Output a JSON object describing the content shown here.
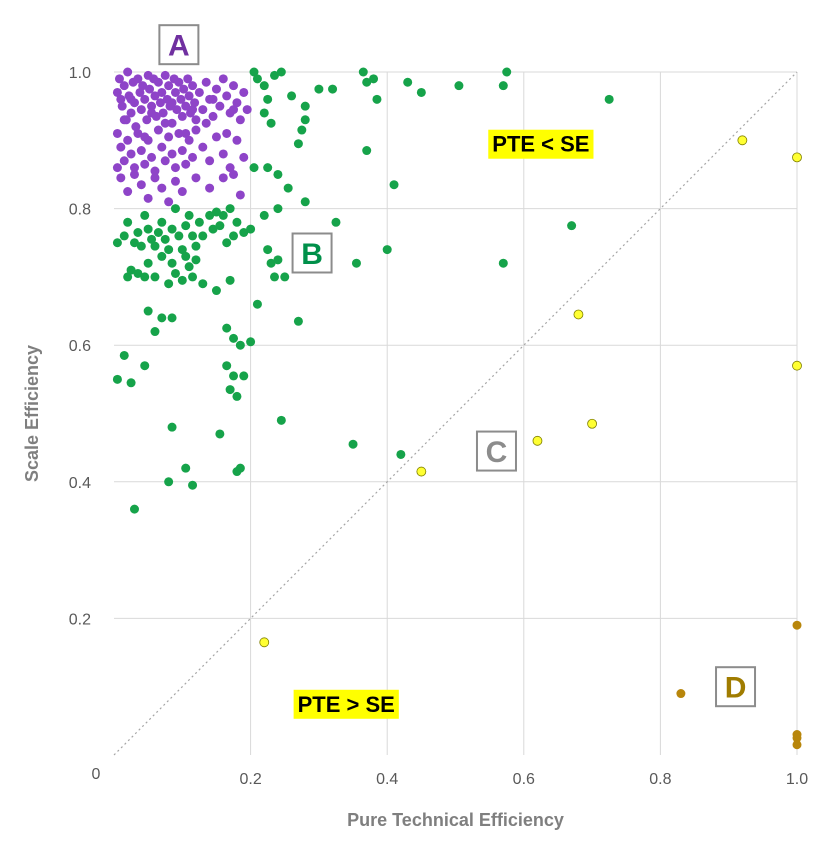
{
  "chart_data": {
    "type": "scatter",
    "title": "",
    "xlabel": "Pure Technical Efficiency",
    "ylabel": "Scale Efficiency",
    "xlim": [
      0,
      1
    ],
    "ylim": [
      0,
      1
    ],
    "grid": true,
    "x_ticks": [
      "0.2",
      "0.4",
      "0.6",
      "0.8",
      "1.0"
    ],
    "y_ticks": [
      "0.2",
      "0.4",
      "0.6",
      "0.8",
      "1.0"
    ],
    "origin_label": "0",
    "reference_line": {
      "type": "diagonal",
      "from": [
        0,
        0
      ],
      "to": [
        1,
        1
      ],
      "style": "dotted"
    },
    "colors": {
      "A": "#8e44c8",
      "B": "#16a34a",
      "C": "#ffff33",
      "D": "#b8860b",
      "grid": "#d9d9d9",
      "diagonal": "#a6a6a6",
      "highlight": "#ffff00"
    },
    "region_labels": [
      {
        "id": "A",
        "text": "A",
        "color": "#7030a0",
        "x": 0.095,
        "y": 1.04
      },
      {
        "id": "B",
        "text": "B",
        "color": "#00904a",
        "x": 0.29,
        "y": 0.735
      },
      {
        "id": "C",
        "text": "C",
        "color": "#8c8c8c",
        "x": 0.56,
        "y": 0.445
      },
      {
        "id": "D",
        "text": "D",
        "color": "#a07c00",
        "x": 0.91,
        "y": 0.1
      }
    ],
    "annotations": [
      {
        "text": "PTE < SE",
        "x": 0.625,
        "y": 0.895
      },
      {
        "text": "PTE > SE",
        "x": 0.34,
        "y": 0.075
      }
    ],
    "series": [
      {
        "group": "A",
        "points": [
          [
            0.005,
            0.97
          ],
          [
            0.008,
            0.99
          ],
          [
            0.01,
            0.96
          ],
          [
            0.012,
            0.95
          ],
          [
            0.015,
            0.98
          ],
          [
            0.018,
            0.93
          ],
          [
            0.02,
            1.0
          ],
          [
            0.022,
            0.965
          ],
          [
            0.025,
            0.94
          ],
          [
            0.028,
            0.985
          ],
          [
            0.03,
            0.955
          ],
          [
            0.032,
            0.92
          ],
          [
            0.035,
            0.99
          ],
          [
            0.038,
            0.97
          ],
          [
            0.04,
            0.945
          ],
          [
            0.042,
            0.98
          ],
          [
            0.045,
            0.96
          ],
          [
            0.048,
            0.93
          ],
          [
            0.05,
            0.995
          ],
          [
            0.052,
            0.975
          ],
          [
            0.055,
            0.95
          ],
          [
            0.058,
            0.99
          ],
          [
            0.06,
            0.965
          ],
          [
            0.062,
            0.935
          ],
          [
            0.065,
            0.985
          ],
          [
            0.068,
            0.955
          ],
          [
            0.07,
            0.97
          ],
          [
            0.072,
            0.94
          ],
          [
            0.075,
            0.995
          ],
          [
            0.078,
            0.96
          ],
          [
            0.08,
            0.98
          ],
          [
            0.082,
            0.95
          ],
          [
            0.085,
            0.925
          ],
          [
            0.088,
            0.99
          ],
          [
            0.09,
            0.97
          ],
          [
            0.092,
            0.945
          ],
          [
            0.095,
            0.985
          ],
          [
            0.098,
            0.96
          ],
          [
            0.1,
            0.935
          ],
          [
            0.102,
            0.975
          ],
          [
            0.105,
            0.95
          ],
          [
            0.108,
            0.99
          ],
          [
            0.11,
            0.965
          ],
          [
            0.112,
            0.94
          ],
          [
            0.115,
            0.98
          ],
          [
            0.118,
            0.955
          ],
          [
            0.12,
            0.93
          ],
          [
            0.125,
            0.97
          ],
          [
            0.13,
            0.945
          ],
          [
            0.135,
            0.985
          ],
          [
            0.14,
            0.96
          ],
          [
            0.145,
            0.935
          ],
          [
            0.15,
            0.975
          ],
          [
            0.155,
            0.95
          ],
          [
            0.16,
            0.99
          ],
          [
            0.165,
            0.965
          ],
          [
            0.17,
            0.94
          ],
          [
            0.175,
            0.98
          ],
          [
            0.18,
            0.955
          ],
          [
            0.185,
            0.93
          ],
          [
            0.19,
            0.97
          ],
          [
            0.195,
            0.945
          ],
          [
            0.005,
            0.91
          ],
          [
            0.01,
            0.89
          ],
          [
            0.015,
            0.87
          ],
          [
            0.02,
            0.9
          ],
          [
            0.025,
            0.88
          ],
          [
            0.03,
            0.86
          ],
          [
            0.035,
            0.91
          ],
          [
            0.04,
            0.885
          ],
          [
            0.045,
            0.865
          ],
          [
            0.05,
            0.9
          ],
          [
            0.055,
            0.875
          ],
          [
            0.06,
            0.855
          ],
          [
            0.065,
            0.915
          ],
          [
            0.07,
            0.89
          ],
          [
            0.075,
            0.87
          ],
          [
            0.08,
            0.905
          ],
          [
            0.085,
            0.88
          ],
          [
            0.09,
            0.86
          ],
          [
            0.095,
            0.91
          ],
          [
            0.1,
            0.885
          ],
          [
            0.105,
            0.865
          ],
          [
            0.11,
            0.9
          ],
          [
            0.115,
            0.875
          ],
          [
            0.12,
            0.915
          ],
          [
            0.13,
            0.89
          ],
          [
            0.14,
            0.87
          ],
          [
            0.15,
            0.905
          ],
          [
            0.16,
            0.88
          ],
          [
            0.17,
            0.86
          ],
          [
            0.18,
            0.9
          ],
          [
            0.19,
            0.875
          ],
          [
            0.005,
            0.86
          ],
          [
            0.01,
            0.845
          ],
          [
            0.02,
            0.825
          ],
          [
            0.03,
            0.85
          ],
          [
            0.04,
            0.835
          ],
          [
            0.05,
            0.815
          ],
          [
            0.06,
            0.845
          ],
          [
            0.07,
            0.83
          ],
          [
            0.08,
            0.81
          ],
          [
            0.09,
            0.84
          ],
          [
            0.1,
            0.825
          ],
          [
            0.12,
            0.845
          ],
          [
            0.14,
            0.83
          ],
          [
            0.16,
            0.845
          ],
          [
            0.175,
            0.85
          ],
          [
            0.185,
            0.82
          ],
          [
            0.015,
            0.93
          ],
          [
            0.045,
            0.905
          ],
          [
            0.075,
            0.925
          ],
          [
            0.105,
            0.91
          ],
          [
            0.135,
            0.925
          ],
          [
            0.165,
            0.91
          ],
          [
            0.025,
            0.96
          ],
          [
            0.055,
            0.94
          ],
          [
            0.085,
            0.955
          ],
          [
            0.115,
            0.945
          ],
          [
            0.145,
            0.96
          ],
          [
            0.175,
            0.945
          ]
        ]
      },
      {
        "group": "B",
        "points": [
          [
            0.205,
            1.0
          ],
          [
            0.235,
            0.995
          ],
          [
            0.245,
            1.0
          ],
          [
            0.22,
            0.98
          ],
          [
            0.225,
            0.96
          ],
          [
            0.21,
            0.99
          ],
          [
            0.26,
            0.965
          ],
          [
            0.28,
            0.95
          ],
          [
            0.3,
            0.975
          ],
          [
            0.32,
            0.975
          ],
          [
            0.365,
            1.0
          ],
          [
            0.37,
            0.985
          ],
          [
            0.38,
            0.99
          ],
          [
            0.385,
            0.96
          ],
          [
            0.43,
            0.985
          ],
          [
            0.45,
            0.97
          ],
          [
            0.505,
            0.98
          ],
          [
            0.57,
            0.98
          ],
          [
            0.575,
            1.0
          ],
          [
            0.725,
            0.96
          ],
          [
            0.22,
            0.94
          ],
          [
            0.23,
            0.925
          ],
          [
            0.275,
            0.915
          ],
          [
            0.28,
            0.93
          ],
          [
            0.27,
            0.895
          ],
          [
            0.225,
            0.86
          ],
          [
            0.205,
            0.86
          ],
          [
            0.24,
            0.85
          ],
          [
            0.255,
            0.83
          ],
          [
            0.28,
            0.81
          ],
          [
            0.37,
            0.885
          ],
          [
            0.41,
            0.835
          ],
          [
            0.24,
            0.8
          ],
          [
            0.005,
            0.75
          ],
          [
            0.015,
            0.76
          ],
          [
            0.02,
            0.78
          ],
          [
            0.03,
            0.75
          ],
          [
            0.035,
            0.765
          ],
          [
            0.04,
            0.745
          ],
          [
            0.045,
            0.79
          ],
          [
            0.05,
            0.77
          ],
          [
            0.055,
            0.755
          ],
          [
            0.06,
            0.745
          ],
          [
            0.065,
            0.765
          ],
          [
            0.07,
            0.78
          ],
          [
            0.075,
            0.755
          ],
          [
            0.08,
            0.74
          ],
          [
            0.085,
            0.77
          ],
          [
            0.09,
            0.8
          ],
          [
            0.095,
            0.76
          ],
          [
            0.1,
            0.74
          ],
          [
            0.105,
            0.775
          ],
          [
            0.11,
            0.79
          ],
          [
            0.115,
            0.76
          ],
          [
            0.12,
            0.745
          ],
          [
            0.125,
            0.78
          ],
          [
            0.13,
            0.76
          ],
          [
            0.14,
            0.79
          ],
          [
            0.145,
            0.77
          ],
          [
            0.15,
            0.795
          ],
          [
            0.155,
            0.775
          ],
          [
            0.16,
            0.79
          ],
          [
            0.165,
            0.75
          ],
          [
            0.17,
            0.8
          ],
          [
            0.175,
            0.76
          ],
          [
            0.18,
            0.78
          ],
          [
            0.19,
            0.765
          ],
          [
            0.2,
            0.77
          ],
          [
            0.22,
            0.79
          ],
          [
            0.225,
            0.74
          ],
          [
            0.325,
            0.78
          ],
          [
            0.02,
            0.7
          ],
          [
            0.025,
            0.71
          ],
          [
            0.035,
            0.705
          ],
          [
            0.045,
            0.7
          ],
          [
            0.05,
            0.72
          ],
          [
            0.06,
            0.7
          ],
          [
            0.07,
            0.73
          ],
          [
            0.08,
            0.69
          ],
          [
            0.085,
            0.72
          ],
          [
            0.09,
            0.705
          ],
          [
            0.1,
            0.695
          ],
          [
            0.105,
            0.73
          ],
          [
            0.11,
            0.715
          ],
          [
            0.115,
            0.7
          ],
          [
            0.12,
            0.725
          ],
          [
            0.13,
            0.69
          ],
          [
            0.15,
            0.68
          ],
          [
            0.17,
            0.695
          ],
          [
            0.23,
            0.72
          ],
          [
            0.235,
            0.7
          ],
          [
            0.24,
            0.725
          ],
          [
            0.25,
            0.7
          ],
          [
            0.355,
            0.72
          ],
          [
            0.4,
            0.74
          ],
          [
            0.57,
            0.72
          ],
          [
            0.67,
            0.775
          ],
          [
            0.05,
            0.65
          ],
          [
            0.06,
            0.62
          ],
          [
            0.07,
            0.64
          ],
          [
            0.085,
            0.64
          ],
          [
            0.21,
            0.66
          ],
          [
            0.27,
            0.635
          ],
          [
            0.165,
            0.625
          ],
          [
            0.175,
            0.61
          ],
          [
            0.185,
            0.6
          ],
          [
            0.2,
            0.605
          ],
          [
            0.015,
            0.585
          ],
          [
            0.045,
            0.57
          ],
          [
            0.005,
            0.55
          ],
          [
            0.025,
            0.545
          ],
          [
            0.165,
            0.57
          ],
          [
            0.175,
            0.555
          ],
          [
            0.19,
            0.555
          ],
          [
            0.18,
            0.525
          ],
          [
            0.17,
            0.535
          ],
          [
            0.155,
            0.47
          ],
          [
            0.245,
            0.49
          ],
          [
            0.085,
            0.48
          ],
          [
            0.35,
            0.455
          ],
          [
            0.42,
            0.44
          ],
          [
            0.105,
            0.42
          ],
          [
            0.18,
            0.415
          ],
          [
            0.185,
            0.42
          ],
          [
            0.08,
            0.4
          ],
          [
            0.115,
            0.395
          ],
          [
            0.03,
            0.36
          ]
        ]
      },
      {
        "group": "C",
        "points": [
          [
            0.92,
            0.9
          ],
          [
            0.68,
            0.645
          ],
          [
            0.7,
            0.485
          ],
          [
            0.62,
            0.46
          ],
          [
            0.45,
            0.415
          ],
          [
            0.22,
            0.165
          ],
          [
            1.0,
            0.875
          ],
          [
            1.0,
            0.57
          ]
        ]
      },
      {
        "group": "D",
        "points": [
          [
            1.0,
            0.19
          ],
          [
            0.83,
            0.09
          ],
          [
            1.0,
            0.03
          ],
          [
            1.0,
            0.025
          ],
          [
            1.0,
            0.015
          ]
        ]
      }
    ]
  }
}
